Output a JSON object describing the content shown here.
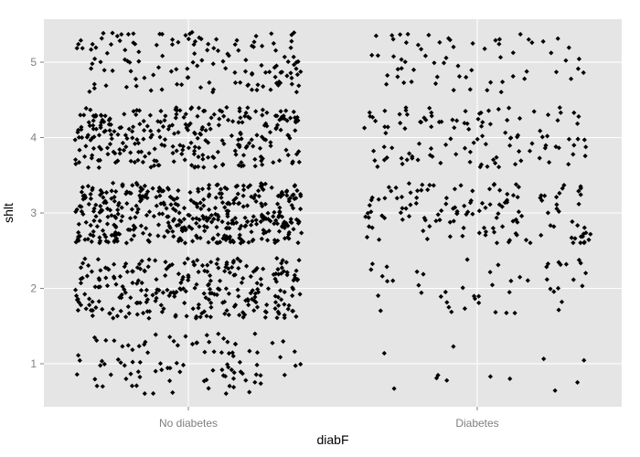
{
  "chart_data": {
    "type": "scatter",
    "jitter": true,
    "title": "",
    "xlabel": "diabF",
    "ylabel": "shlt",
    "categories": [
      "No diabetes",
      "Diabetes"
    ],
    "ylim": [
      0.43,
      5.57
    ],
    "yticks": [
      "1",
      "2",
      "3",
      "4",
      "5"
    ],
    "grid": true,
    "colors": {
      "panel": "#e5e5e5",
      "grid": "#ffffff",
      "point": "#000000",
      "tick_label": "#7f7f7f"
    },
    "groups": [
      {
        "category": "No diabetes",
        "counts": {
          "1": 100,
          "2": 280,
          "3": 430,
          "4": 290,
          "5": 140
        }
      },
      {
        "category": "Diabetes",
        "counts": {
          "1": 12,
          "2": 50,
          "3": 140,
          "4": 115,
          "5": 65
        }
      }
    ]
  }
}
